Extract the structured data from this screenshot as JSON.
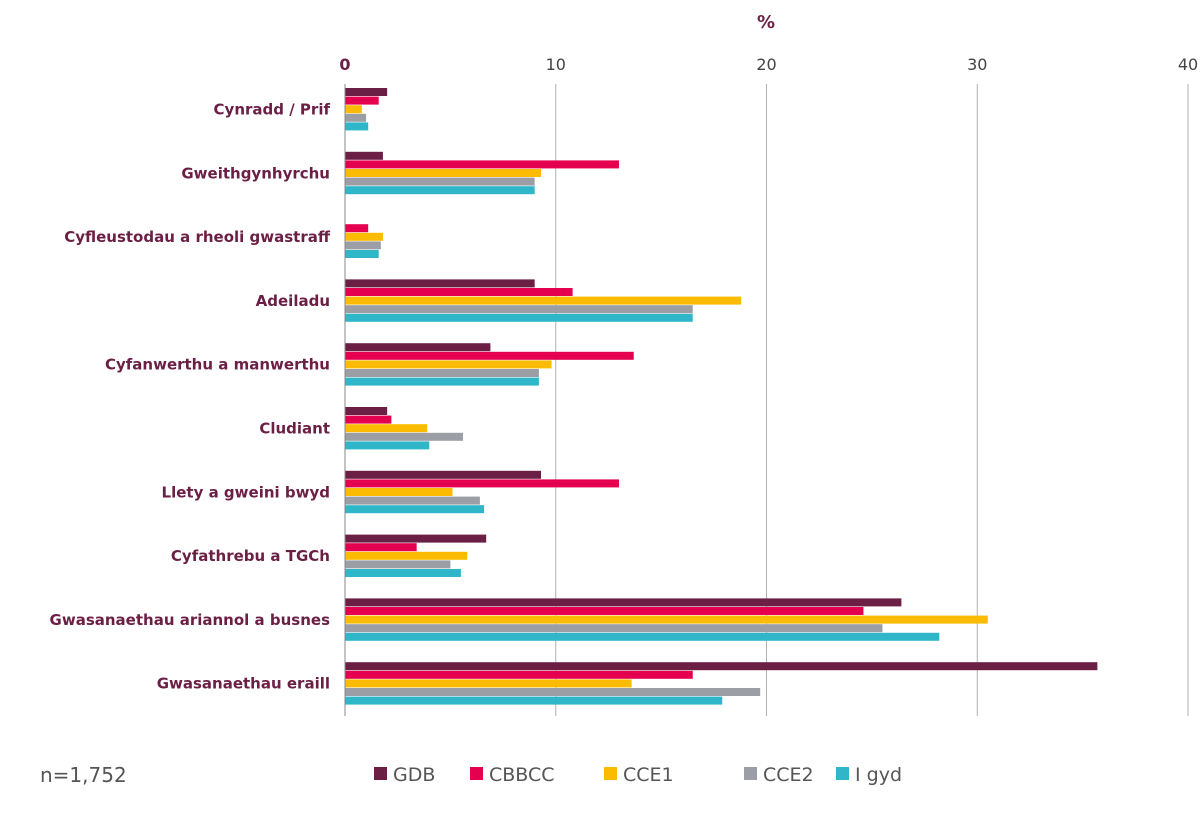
{
  "chart_data": {
    "type": "bar",
    "orientation": "horizontal",
    "x_axis_label": "%",
    "xlim": [
      0,
      40
    ],
    "x_ticks": [
      "0",
      "10",
      "20",
      "30",
      "40"
    ],
    "grid": true,
    "legend_position": "bottom",
    "categories": [
      "Cynradd / Prif",
      "Gweithgynhyrchu",
      "Cyfleustodau a rheoli gwastraff",
      "Adeiladu",
      "Cyfanwerthu a manwerthu",
      "Cludiant",
      "Llety a gweini bwyd",
      "Cyfathrebu a TGCh",
      "Gwasanaethau ariannol a busnes",
      "Gwasanaethau eraill"
    ],
    "series": [
      {
        "name": "GDB",
        "color": "#6b1f45",
        "values": [
          2.0,
          1.8,
          0.0,
          9.0,
          6.9,
          2.0,
          9.3,
          6.7,
          26.4,
          35.7
        ]
      },
      {
        "name": "CBBCC",
        "color": "#e5004f",
        "values": [
          1.6,
          13.0,
          1.1,
          10.8,
          13.7,
          2.2,
          13.0,
          3.4,
          24.6,
          16.5
        ]
      },
      {
        "name": "CCE1",
        "color": "#fbbb00",
        "values": [
          0.8,
          9.3,
          1.8,
          18.8,
          9.8,
          3.9,
          5.1,
          5.8,
          30.5,
          13.6
        ]
      },
      {
        "name": "CCE2",
        "color": "#9b9ea4",
        "values": [
          1.0,
          9.0,
          1.7,
          16.5,
          9.2,
          5.6,
          6.4,
          5.0,
          25.5,
          19.7
        ]
      },
      {
        "name": "I gyd",
        "color": "#2fb7c9",
        "values": [
          1.1,
          9.0,
          1.6,
          16.5,
          9.2,
          4.0,
          6.6,
          5.5,
          28.2,
          17.9
        ]
      }
    ]
  },
  "footer": {
    "sample_note": "n=1,752"
  },
  "colors": {
    "label_text": "#6b1f45",
    "gridline": "#b0b0b0",
    "tick_text": "#444444"
  }
}
